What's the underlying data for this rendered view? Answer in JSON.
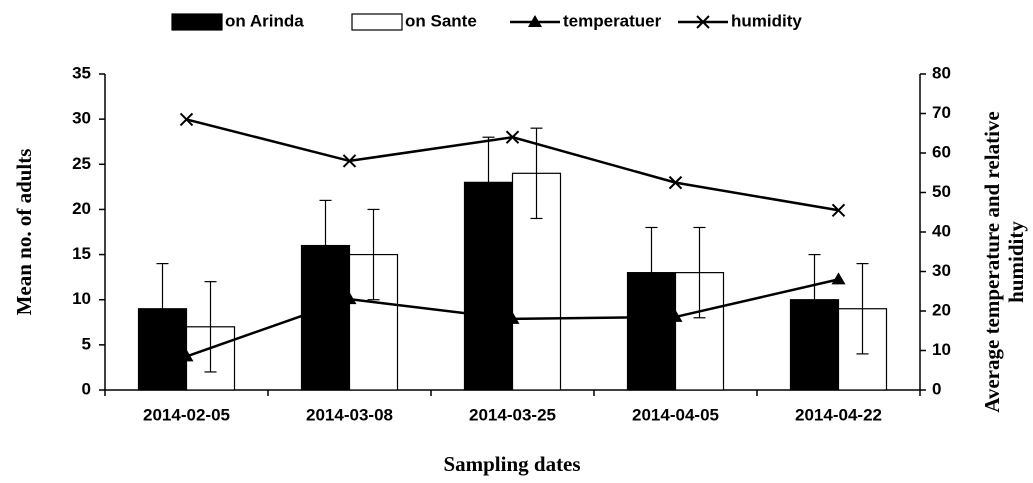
{
  "chart_data": {
    "type": "bar",
    "xlabel": "Sampling dates",
    "ylabel": "Mean no. of adults",
    "y2label": [
      "Average temperature and relative",
      "humidity"
    ],
    "categories": [
      "2014-02-05",
      "2014-03-08",
      "2014-03-25",
      "2014-04-05",
      "2014-04-22"
    ],
    "series": [
      {
        "name": "on Arinda",
        "type": "bar",
        "color": "#000000",
        "values": [
          9,
          16,
          23,
          13,
          10
        ],
        "errors": [
          5,
          5,
          5,
          5,
          5
        ]
      },
      {
        "name": "on Sante",
        "type": "bar",
        "color": "#ffffff",
        "values": [
          7,
          15,
          24,
          13,
          9
        ],
        "errors": [
          5,
          5,
          5,
          5,
          5
        ]
      },
      {
        "name": "temperatuer",
        "type": "line",
        "axis": "y2",
        "marker": "triangle",
        "color": "#000000",
        "values": [
          8.5,
          23,
          18,
          18.5,
          28
        ]
      },
      {
        "name": "humidity",
        "type": "line",
        "axis": "y2",
        "marker": "x",
        "color": "#000000",
        "values": [
          68.5,
          58,
          64,
          52.5,
          45.5
        ]
      }
    ],
    "ylim": [
      0,
      35
    ],
    "yticks": [
      0,
      5,
      10,
      15,
      20,
      25,
      30,
      35
    ],
    "y2lim": [
      0,
      80
    ],
    "y2ticks": [
      0,
      10,
      20,
      30,
      40,
      50,
      60,
      70,
      80
    ],
    "legend": "top"
  }
}
